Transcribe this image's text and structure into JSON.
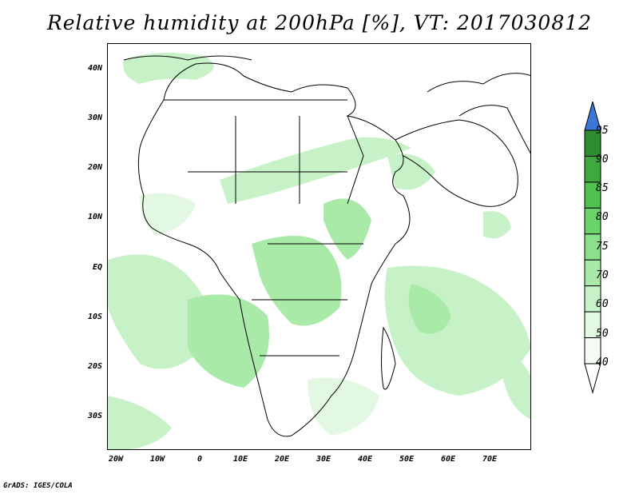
{
  "title": "Relative humidity at 200hPa [%], VT: 2017030812",
  "credit": "GrADS: IGES/COLA",
  "map": {
    "lat_ticks": [
      "40N",
      "30N",
      "20N",
      "10N",
      "EQ",
      "10S",
      "20S",
      "30S"
    ],
    "lon_ticks": [
      "20W",
      "10W",
      "0",
      "10E",
      "20E",
      "30E",
      "40E",
      "50E",
      "60E",
      "70E"
    ],
    "region": "Africa and Middle East",
    "boundaries_color": "#000000"
  },
  "colorbar": {
    "levels": [
      "95",
      "90",
      "85",
      "80",
      "75",
      "70",
      "60",
      "50",
      "40"
    ],
    "colors": [
      "#2f8c2f",
      "#3fa83f",
      "#50c050",
      "#6bd46b",
      "#8be08b",
      "#a9eaa9",
      "#c7f2c7",
      "#e2f8e2",
      "#f4fcf4"
    ],
    "overflow_color": "#3a78d8",
    "underflow_color": "#ffffff"
  }
}
